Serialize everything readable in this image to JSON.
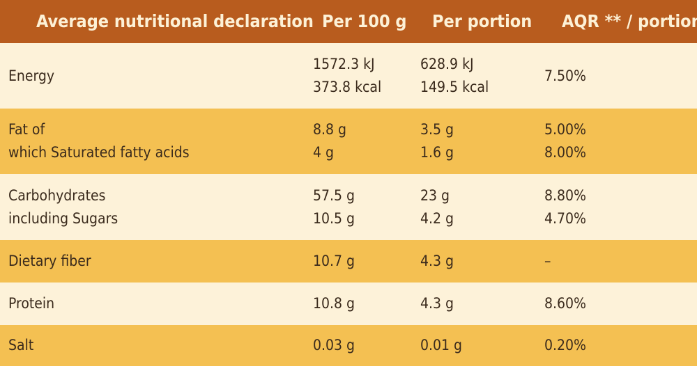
{
  "header": {
    "col1": "Average nutritional declaration",
    "col2": "Per 100 g",
    "col3": "Per portion",
    "col4": "AQR ** / portion"
  },
  "rows": [
    {
      "label": [
        "Energy"
      ],
      "per100": [
        "1572.3 kJ",
        "373.8 kcal"
      ],
      "portion": [
        "628.9 kJ",
        "149.5 kcal"
      ],
      "aqr": [
        "7.50%"
      ]
    },
    {
      "label": [
        "Fat of",
        "which Saturated fatty acids"
      ],
      "per100": [
        "8.8 g",
        "4 g"
      ],
      "portion": [
        "3.5 g",
        "1.6 g"
      ],
      "aqr": [
        "5.00%",
        "8.00%"
      ]
    },
    {
      "label": [
        "Carbohydrates",
        "including Sugars"
      ],
      "per100": [
        "57.5 g",
        "10.5 g"
      ],
      "portion": [
        "23 g",
        "4.2 g"
      ],
      "aqr": [
        "8.80%",
        "4.70%"
      ]
    },
    {
      "label": [
        "Dietary fiber"
      ],
      "per100": [
        "10.7 g"
      ],
      "portion": [
        "4.3 g"
      ],
      "aqr": [
        "–"
      ]
    },
    {
      "label": [
        "Protein"
      ],
      "per100": [
        "10.8 g"
      ],
      "portion": [
        "4.3 g"
      ],
      "aqr": [
        "8.60%"
      ]
    },
    {
      "label": [
        "Salt"
      ],
      "per100": [
        "0.03 g"
      ],
      "portion": [
        "0.01 g"
      ],
      "aqr": [
        "0.20%"
      ]
    }
  ],
  "colors": {
    "header": "#b85c1e",
    "row_light": "#fdf2d9",
    "row_dark": "#f4c052",
    "text": "#3a2a1c",
    "header_text": "#fdf1d6"
  }
}
